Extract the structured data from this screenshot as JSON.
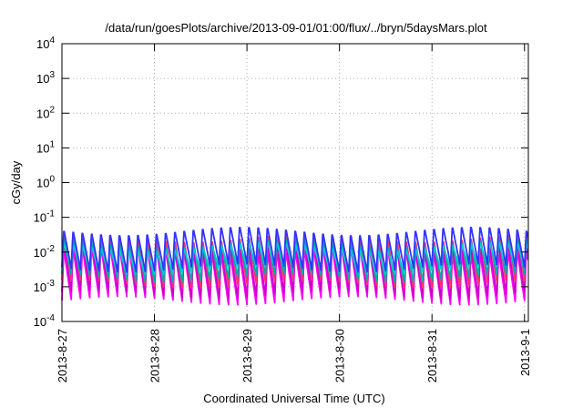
{
  "chart_data": {
    "type": "line",
    "title": "/data/run/goesPlots/archive/2013-09-01/01:00/flux/../bryn/5daysMars.plot",
    "xlabel": "Coordinated Universal Time (UTC)",
    "ylabel": "cGy/day",
    "yscale": "log",
    "ylim": [
      0.0001,
      10000
    ],
    "xlim": [
      "2013-08-27",
      "2013-09-01T01:00"
    ],
    "x_ticks": [
      "2013-8-27",
      "2013-8-28",
      "2013-8-29",
      "2013-8-30",
      "2013-8-31",
      "2013-9-1"
    ],
    "y_ticks": [
      {
        "base": "10",
        "exp": "-4"
      },
      {
        "base": "10",
        "exp": "-3"
      },
      {
        "base": "10",
        "exp": "-2"
      },
      {
        "base": "10",
        "exp": "-1"
      },
      {
        "base": "10",
        "exp": "0"
      },
      {
        "base": "10",
        "exp": "1"
      },
      {
        "base": "10",
        "exp": "2"
      },
      {
        "base": "10",
        "exp": "3"
      },
      {
        "base": "10",
        "exp": "4"
      }
    ],
    "grid": true,
    "legend": "none",
    "period_hours": 2.4,
    "series": [
      {
        "color": "#ff00ff",
        "peak": 0.012,
        "trough": 0.0004
      },
      {
        "color": "#cc00cc",
        "peak": 0.018,
        "trough": 0.0006
      },
      {
        "color": "#ff3366",
        "peak": 0.03,
        "trough": 0.0012
      },
      {
        "color": "#00aaaa",
        "peak": 0.02,
        "trough": 0.0018
      },
      {
        "color": "#00cccc",
        "peak": 0.015,
        "trough": 0.003
      },
      {
        "color": "#3333ff",
        "peak": 0.045,
        "trough": 0.0035
      }
    ]
  }
}
